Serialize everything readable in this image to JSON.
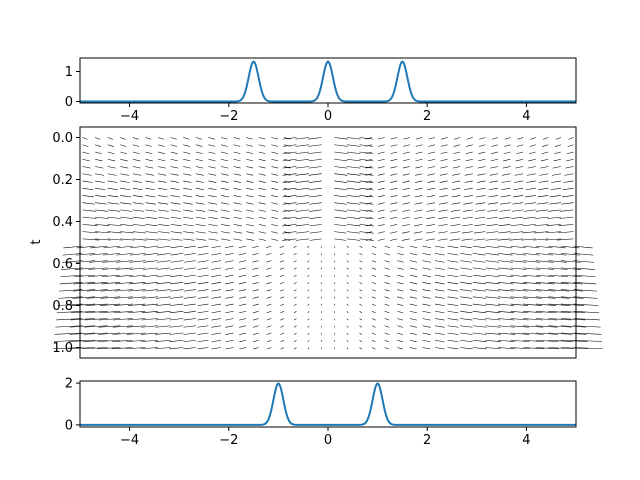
{
  "chart_data": [
    {
      "type": "line",
      "xlim": [
        -5,
        5
      ],
      "ylim": [
        -0.05,
        1.45
      ],
      "x_ticks": [
        -4,
        -2,
        0,
        2,
        4
      ],
      "x_tick_labels": [
        "−4",
        "−2",
        "0",
        "2",
        "4"
      ],
      "y_ticks": [
        0,
        1
      ],
      "y_tick_labels": [
        "0",
        "1"
      ],
      "series": [
        {
          "color": "#1f77b4",
          "peaks": [
            -1.5,
            0,
            1.5
          ],
          "amplitude": 1.33,
          "width": 0.1
        }
      ],
      "grid": false
    },
    {
      "type": "quiver",
      "xlim": [
        -5,
        5
      ],
      "ylim": [
        1.05,
        -0.05
      ],
      "ylabel": "t",
      "y_ticks": [
        0.0,
        0.2,
        0.4,
        0.6,
        0.8,
        1.0
      ],
      "y_tick_labels": [
        "0.0",
        "0.2",
        "0.4",
        "0.6",
        "0.8",
        "1.0"
      ],
      "x_ticks": [],
      "color": "#000000",
      "grid": false
    },
    {
      "type": "line",
      "xlim": [
        -5,
        5
      ],
      "ylim": [
        -0.1,
        2.1
      ],
      "x_ticks": [
        -4,
        -2,
        0,
        2,
        4
      ],
      "x_tick_labels": [
        "−4",
        "−2",
        "0",
        "2",
        "4"
      ],
      "y_ticks": [
        0,
        2
      ],
      "y_tick_labels": [
        "0",
        "2"
      ],
      "series": [
        {
          "color": "#1f77b4",
          "peaks": [
            -1,
            1
          ],
          "amplitude": 1.98,
          "width": 0.1
        }
      ],
      "grid": false
    }
  ]
}
